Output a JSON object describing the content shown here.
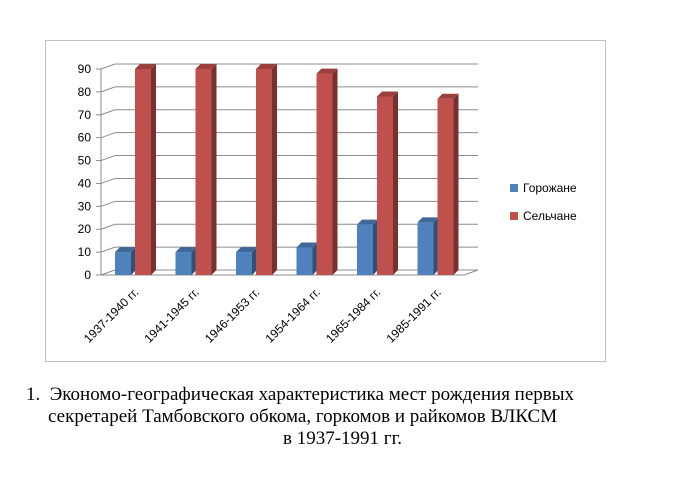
{
  "chart_data": {
    "type": "bar",
    "categories": [
      "1937-1940  гг.",
      "1941-1945  гг.",
      "1946-1953  гг.",
      "1954-1964  гг.",
      "1965-1984  гг.",
      "1985-1991  гг."
    ],
    "series": [
      {
        "name": "Горожане",
        "values": [
          10,
          10,
          10,
          12,
          22,
          23
        ],
        "color": "#4f81bd"
      },
      {
        "name": "Сельчане",
        "values": [
          90,
          90,
          90,
          88,
          78,
          77
        ],
        "color": "#c0504d"
      }
    ],
    "ylim": [
      0,
      90
    ],
    "yticks": [
      "0",
      "10",
      "20",
      "30",
      "40",
      "50",
      "60",
      "70",
      "80",
      "90"
    ],
    "grid": true,
    "legend_position": "right",
    "style": "3d-clustered-column"
  },
  "caption": {
    "number": "1.",
    "line1": "Экономо-географическая характеристика мест рождения первых",
    "line2": "секретарей Тамбовского обкома, горкомов и райкомов ВЛКСМ",
    "line3": "в 1937-1991 гг."
  }
}
